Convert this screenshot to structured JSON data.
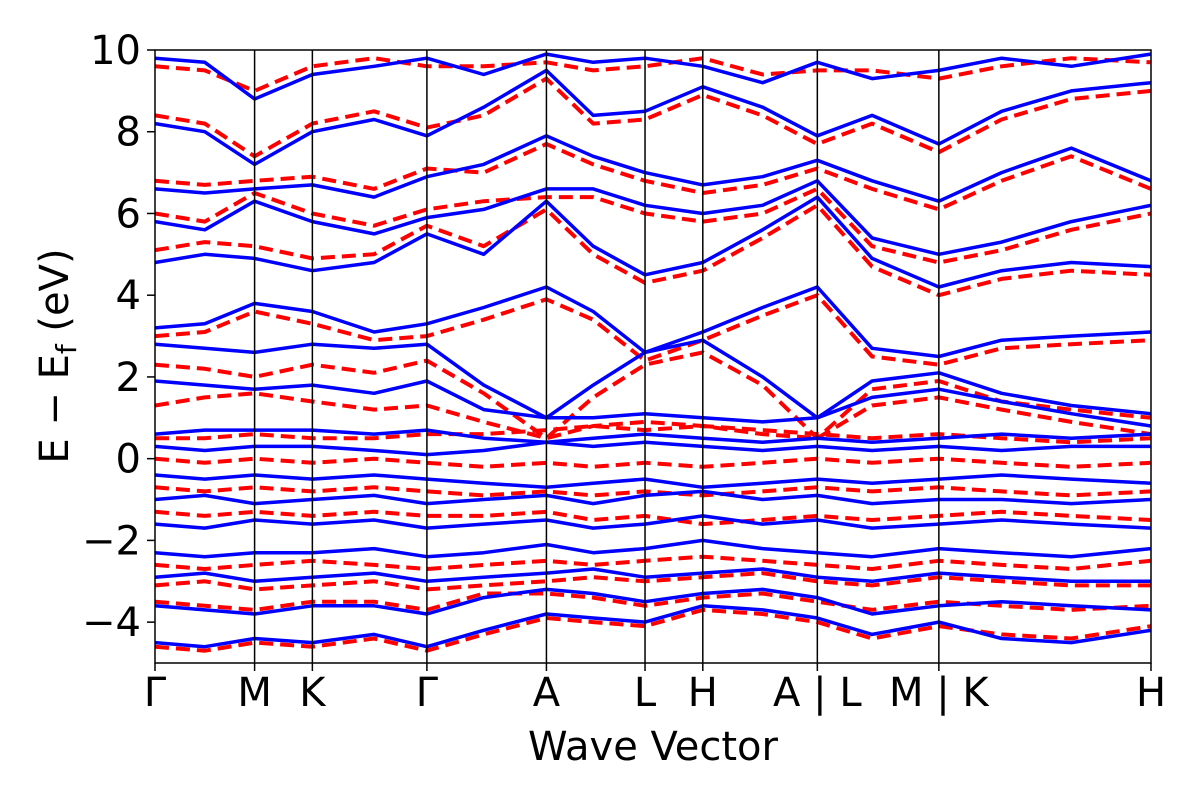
{
  "chart_data": {
    "type": "line",
    "xlabel": "Wave Vector",
    "ylabel_parts": {
      "main": "E − E",
      "sub": "f",
      "unit": "(eV)"
    },
    "ylim": [
      -5,
      10
    ],
    "yticks": [
      -4,
      -2,
      0,
      2,
      4,
      6,
      8,
      10
    ],
    "ytick_labels": [
      "−4",
      "−2",
      "0",
      "2",
      "4",
      "6",
      "8",
      "10"
    ],
    "xlim": [
      0,
      10
    ],
    "kpoints": [
      {
        "label": "Γ",
        "x": 0.0
      },
      {
        "label": "M",
        "x": 1.0
      },
      {
        "label": "K",
        "x": 1.58
      },
      {
        "label": "Γ",
        "x": 2.73
      },
      {
        "label": "A",
        "x": 3.93
      },
      {
        "label": "L",
        "x": 4.92
      },
      {
        "label": "H",
        "x": 5.5
      },
      {
        "label": "A | L",
        "x": 6.65
      },
      {
        "label": "M | K",
        "x": 7.87
      },
      {
        "label": "H",
        "x": 10.0
      }
    ],
    "grid": false,
    "series": [
      {
        "style": "solid",
        "color": "#0000ff",
        "x": [
          0,
          0.5,
          1.0,
          1.58,
          2.2,
          2.73,
          3.3,
          3.93,
          4.4,
          4.92,
          5.5,
          6.1,
          6.65,
          7.2,
          7.87,
          8.5,
          9.2,
          10.0
        ],
        "lines": [
          [
            -4.5,
            -4.6,
            -4.4,
            -4.5,
            -4.3,
            -4.6,
            -4.2,
            -3.8,
            -3.9,
            -4.0,
            -3.6,
            -3.7,
            -3.9,
            -4.3,
            -4.0,
            -4.4,
            -4.5,
            -4.2
          ],
          [
            -3.6,
            -3.7,
            -3.8,
            -3.6,
            -3.6,
            -3.8,
            -3.4,
            -3.2,
            -3.3,
            -3.5,
            -3.3,
            -3.2,
            -3.4,
            -3.8,
            -3.6,
            -3.5,
            -3.6,
            -3.7
          ],
          [
            -2.9,
            -2.8,
            -3.0,
            -2.9,
            -2.8,
            -3.0,
            -2.9,
            -2.8,
            -2.7,
            -2.9,
            -2.8,
            -2.7,
            -2.9,
            -3.0,
            -2.8,
            -2.9,
            -3.0,
            -3.0
          ],
          [
            -2.3,
            -2.4,
            -2.3,
            -2.3,
            -2.2,
            -2.4,
            -2.3,
            -2.1,
            -2.3,
            -2.2,
            -2.0,
            -2.2,
            -2.3,
            -2.4,
            -2.2,
            -2.3,
            -2.4,
            -2.2
          ],
          [
            -1.6,
            -1.7,
            -1.5,
            -1.6,
            -1.5,
            -1.7,
            -1.6,
            -1.5,
            -1.7,
            -1.6,
            -1.4,
            -1.6,
            -1.5,
            -1.7,
            -1.6,
            -1.5,
            -1.6,
            -1.7
          ],
          [
            -1.0,
            -0.9,
            -1.1,
            -1.0,
            -0.9,
            -1.1,
            -1.0,
            -0.9,
            -1.1,
            -0.9,
            -0.8,
            -1.0,
            -0.9,
            -1.1,
            -1.0,
            -1.0,
            -1.1,
            -1.0
          ],
          [
            -0.4,
            -0.5,
            -0.4,
            -0.5,
            -0.4,
            -0.5,
            -0.6,
            -0.7,
            -0.6,
            -0.5,
            -0.7,
            -0.6,
            -0.5,
            -0.6,
            -0.5,
            -0.4,
            -0.5,
            -0.6
          ],
          [
            0.3,
            0.2,
            0.3,
            0.3,
            0.2,
            0.1,
            0.2,
            0.4,
            0.3,
            0.4,
            0.3,
            0.2,
            0.3,
            0.2,
            0.3,
            0.2,
            0.3,
            0.3
          ],
          [
            0.6,
            0.7,
            0.7,
            0.7,
            0.6,
            0.7,
            0.5,
            0.4,
            0.5,
            0.6,
            0.5,
            0.4,
            0.5,
            0.4,
            0.5,
            0.6,
            0.5,
            0.6
          ],
          [
            1.9,
            1.8,
            1.7,
            1.8,
            1.6,
            1.9,
            1.2,
            1.0,
            1.0,
            1.1,
            1.0,
            0.9,
            1.0,
            1.5,
            1.7,
            1.4,
            1.1,
            0.8
          ],
          [
            2.8,
            2.7,
            2.6,
            2.8,
            2.7,
            2.8,
            1.8,
            1.0,
            1.8,
            2.6,
            2.9,
            2.0,
            1.0,
            1.9,
            2.1,
            1.6,
            1.3,
            1.1
          ],
          [
            3.2,
            3.3,
            3.8,
            3.6,
            3.1,
            3.3,
            3.7,
            4.2,
            3.6,
            2.6,
            3.1,
            3.7,
            4.2,
            2.7,
            2.5,
            2.9,
            3.0,
            3.1
          ],
          [
            4.8,
            5.0,
            4.9,
            4.6,
            4.8,
            5.5,
            5.0,
            6.3,
            5.2,
            4.5,
            4.8,
            5.6,
            6.4,
            4.9,
            4.2,
            4.6,
            4.8,
            4.7
          ],
          [
            5.8,
            5.6,
            6.3,
            5.8,
            5.5,
            5.9,
            6.1,
            6.6,
            6.6,
            6.2,
            6.0,
            6.2,
            6.8,
            5.4,
            5.0,
            5.3,
            5.8,
            6.2
          ],
          [
            6.6,
            6.5,
            6.6,
            6.7,
            6.4,
            6.9,
            7.2,
            7.9,
            7.4,
            7.0,
            6.7,
            6.9,
            7.3,
            6.8,
            6.3,
            7.0,
            7.6,
            6.8
          ],
          [
            8.2,
            8.0,
            7.2,
            8.0,
            8.3,
            7.9,
            8.6,
            9.5,
            8.4,
            8.5,
            9.1,
            8.6,
            7.9,
            8.4,
            7.7,
            8.5,
            9.0,
            9.2
          ],
          [
            9.8,
            9.7,
            8.8,
            9.4,
            9.6,
            9.8,
            9.4,
            9.9,
            9.7,
            9.8,
            9.6,
            9.2,
            9.7,
            9.3,
            9.5,
            9.8,
            9.6,
            9.9
          ]
        ]
      },
      {
        "style": "dashed",
        "color": "#ff0000",
        "x": [
          0,
          0.5,
          1.0,
          1.58,
          2.2,
          2.73,
          3.3,
          3.93,
          4.4,
          4.92,
          5.5,
          6.1,
          6.65,
          7.2,
          7.87,
          8.5,
          9.2,
          10.0
        ],
        "lines": [
          [
            -4.6,
            -4.7,
            -4.5,
            -4.6,
            -4.4,
            -4.7,
            -4.3,
            -3.9,
            -4.0,
            -4.1,
            -3.7,
            -3.8,
            -4.0,
            -4.4,
            -4.1,
            -4.3,
            -4.4,
            -4.1
          ],
          [
            -3.5,
            -3.6,
            -3.7,
            -3.5,
            -3.5,
            -3.7,
            -3.3,
            -3.3,
            -3.4,
            -3.6,
            -3.4,
            -3.3,
            -3.5,
            -3.7,
            -3.5,
            -3.6,
            -3.7,
            -3.6
          ],
          [
            -3.1,
            -3.0,
            -3.2,
            -3.1,
            -3.0,
            -3.2,
            -3.1,
            -3.0,
            -2.9,
            -3.0,
            -2.9,
            -2.8,
            -3.0,
            -3.1,
            -2.9,
            -3.0,
            -3.1,
            -3.1
          ],
          [
            -2.6,
            -2.7,
            -2.6,
            -2.5,
            -2.6,
            -2.7,
            -2.6,
            -2.5,
            -2.6,
            -2.5,
            -2.4,
            -2.5,
            -2.6,
            -2.7,
            -2.5,
            -2.6,
            -2.7,
            -2.5
          ],
          [
            -1.3,
            -1.4,
            -1.3,
            -1.4,
            -1.3,
            -1.4,
            -1.4,
            -1.3,
            -1.5,
            -1.4,
            -1.6,
            -1.5,
            -1.4,
            -1.5,
            -1.4,
            -1.3,
            -1.4,
            -1.5
          ],
          [
            -0.7,
            -0.8,
            -0.7,
            -0.8,
            -0.7,
            -0.8,
            -0.9,
            -0.8,
            -0.9,
            -0.8,
            -0.9,
            -0.8,
            -0.7,
            -0.8,
            -0.7,
            -0.8,
            -0.9,
            -0.8
          ],
          [
            0.0,
            -0.1,
            0.0,
            -0.1,
            0.0,
            -0.1,
            -0.2,
            -0.1,
            -0.2,
            -0.1,
            -0.2,
            -0.1,
            0.0,
            -0.1,
            0.0,
            -0.1,
            -0.2,
            -0.1
          ],
          [
            0.5,
            0.5,
            0.6,
            0.5,
            0.5,
            0.6,
            0.6,
            0.7,
            0.8,
            0.7,
            0.8,
            0.7,
            0.6,
            0.5,
            0.6,
            0.5,
            0.4,
            0.5
          ],
          [
            1.3,
            1.5,
            1.6,
            1.4,
            1.2,
            1.3,
            0.9,
            0.5,
            0.8,
            0.9,
            0.8,
            0.6,
            0.5,
            1.3,
            1.5,
            1.2,
            0.9,
            0.6
          ],
          [
            2.3,
            2.2,
            2.0,
            2.3,
            2.1,
            2.4,
            1.6,
            0.5,
            1.5,
            2.3,
            2.6,
            1.8,
            0.5,
            1.7,
            1.9,
            1.4,
            1.2,
            1.0
          ],
          [
            3.0,
            3.1,
            3.6,
            3.3,
            2.9,
            3.0,
            3.4,
            3.9,
            3.4,
            2.4,
            2.9,
            3.5,
            4.0,
            2.5,
            2.3,
            2.7,
            2.8,
            2.9
          ],
          [
            5.1,
            5.3,
            5.2,
            4.9,
            5.0,
            5.7,
            5.2,
            6.1,
            5.0,
            4.3,
            4.6,
            5.4,
            6.2,
            4.7,
            4.0,
            4.4,
            4.6,
            4.5
          ],
          [
            6.0,
            5.8,
            6.5,
            6.0,
            5.7,
            6.1,
            6.3,
            6.4,
            6.4,
            6.0,
            5.8,
            6.0,
            6.6,
            5.2,
            4.8,
            5.1,
            5.6,
            6.0
          ],
          [
            6.8,
            6.7,
            6.8,
            6.9,
            6.6,
            7.1,
            7.0,
            7.7,
            7.2,
            6.8,
            6.5,
            6.7,
            7.1,
            6.6,
            6.1,
            6.8,
            7.4,
            6.6
          ],
          [
            8.4,
            8.2,
            7.4,
            8.2,
            8.5,
            8.1,
            8.4,
            9.3,
            8.2,
            8.3,
            8.9,
            8.4,
            7.7,
            8.2,
            7.5,
            8.3,
            8.8,
            9.0
          ],
          [
            9.6,
            9.5,
            9.0,
            9.6,
            9.8,
            9.6,
            9.6,
            9.7,
            9.5,
            9.6,
            9.8,
            9.4,
            9.5,
            9.5,
            9.3,
            9.6,
            9.8,
            9.7
          ]
        ]
      }
    ]
  }
}
